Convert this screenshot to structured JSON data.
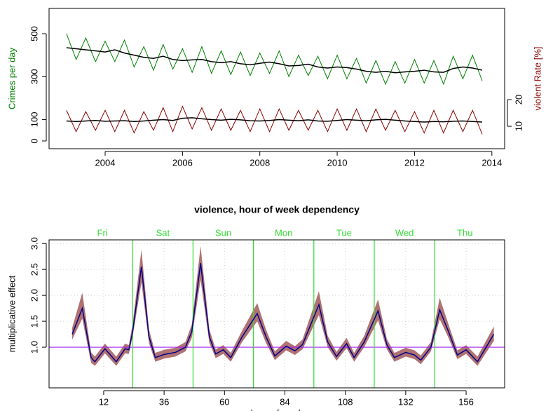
{
  "chart_data": [
    {
      "type": "line",
      "ylabel": "Crimes per day",
      "y2label": "violent Rate [%]",
      "xlim": [
        2002.55,
        2014.33
      ],
      "xticks": [
        2004,
        2006,
        2008,
        2010,
        2012,
        2014
      ],
      "ylim": [
        -36,
        618
      ],
      "yticks": [
        0,
        100,
        300,
        500
      ],
      "y2lim": [
        1.6,
        54.2
      ],
      "y2ticks": [
        10,
        20
      ],
      "ylabel_color": "#008000",
      "y2label_color": "#8b0000",
      "x": [
        2003,
        2003.25,
        2003.5,
        2003.75,
        2004,
        2004.25,
        2004.5,
        2004.75,
        2005,
        2005.25,
        2005.5,
        2005.75,
        2006,
        2006.25,
        2006.5,
        2006.75,
        2007,
        2007.25,
        2007.5,
        2007.75,
        2008,
        2008.25,
        2008.5,
        2008.75,
        2009,
        2009.25,
        2009.5,
        2009.75,
        2010,
        2010.25,
        2010.5,
        2010.75,
        2011,
        2011.25,
        2011.5,
        2011.75,
        2012,
        2012.25,
        2012.5,
        2012.75,
        2013,
        2013.25,
        2013.5,
        2013.75
      ],
      "series": [
        {
          "color": "#008000",
          "width": 1,
          "values": [
            500,
            380,
            480,
            370,
            465,
            370,
            470,
            345,
            440,
            330,
            450,
            335,
            430,
            320,
            440,
            315,
            420,
            310,
            415,
            305,
            410,
            315,
            420,
            300,
            400,
            305,
            395,
            290,
            400,
            290,
            385,
            270,
            375,
            265,
            370,
            270,
            380,
            270,
            375,
            265,
            395,
            290,
            400,
            280
          ]
        },
        {
          "color": "#000000",
          "width": 1.5,
          "values": [
            435,
            430,
            425,
            420,
            415,
            425,
            410,
            400,
            390,
            385,
            395,
            380,
            375,
            378,
            380,
            370,
            365,
            370,
            360,
            355,
            362,
            368,
            360,
            350,
            352,
            358,
            345,
            340,
            345,
            342,
            335,
            325,
            320,
            325,
            318,
            322,
            325,
            330,
            322,
            320,
            338,
            345,
            340,
            330
          ]
        },
        {
          "color": "#8b0000",
          "width": 1,
          "axis": "y2",
          "values": [
            16,
            8,
            15.5,
            8.5,
            16,
            8,
            16,
            7.5,
            15.5,
            8.5,
            17,
            8,
            17.5,
            9,
            17,
            8.5,
            16.5,
            8.5,
            16,
            8,
            16.5,
            8,
            16.5,
            8.5,
            16,
            8.5,
            16,
            8,
            16.5,
            8.5,
            16.5,
            8,
            16.5,
            8.5,
            16,
            8,
            15.5,
            7.5,
            16,
            7.5,
            16,
            8,
            16,
            7
          ]
        },
        {
          "color": "#000000",
          "width": 1.5,
          "axis": "y2",
          "values": [
            12,
            11.8,
            12,
            12.2,
            11.9,
            12,
            12.1,
            11.8,
            12,
            12.3,
            12.5,
            12.2,
            13,
            13.2,
            12.8,
            12.5,
            12.3,
            12.6,
            12.4,
            12.1,
            12,
            12.2,
            12.5,
            12.3,
            12.1,
            12.4,
            12,
            11.9,
            12.2,
            12.5,
            12.3,
            12.1,
            12.4,
            12.6,
            12.3,
            12,
            11.8,
            11.6,
            11.8,
            11.7,
            11.9,
            12,
            11.8,
            11.6
          ]
        }
      ]
    },
    {
      "type": "line",
      "title": "violence, hour of week dependency",
      "xlabel": "hour of week",
      "ylabel": "multiplicative effect",
      "xlim": [
        -9.7,
        171.3
      ],
      "xticks": [
        12,
        36,
        60,
        84,
        108,
        132,
        156
      ],
      "ylim": [
        0.216,
        3.07
      ],
      "yticks": [
        {
          "value": 1,
          "label": "1.0"
        },
        {
          "value": 1.5,
          "label": "1.5"
        },
        {
          "value": 2,
          "label": "2.0"
        },
        {
          "value": 2.5,
          "label": "2.5"
        },
        {
          "value": 3,
          "label": "3.0"
        }
      ],
      "grid": true,
      "hline": 1,
      "hline_color": "#a020f0",
      "days": [
        "Fri",
        "Sat",
        "Sun",
        "Mon",
        "Tue",
        "Wed",
        "Thu"
      ],
      "day_starts": [
        -0.5,
        23.5,
        47.5,
        71.5,
        95.5,
        119.5,
        143.5
      ],
      "day_color": "#33dd33",
      "x": [
        -0.5,
        3.5,
        7,
        8.5,
        12.5,
        17,
        20.5,
        22,
        23.5,
        27,
        30,
        32.5,
        36,
        40.5,
        44.5,
        47,
        50.5,
        54,
        56.5,
        59.5,
        62.5,
        67,
        73,
        76.5,
        80,
        84.5,
        88,
        91,
        97.5,
        101,
        104.5,
        108.5,
        111.5,
        115.5,
        121,
        124.5,
        127.5,
        132,
        135.5,
        138,
        142,
        145.5,
        149,
        152.5,
        156,
        160.5,
        167
      ],
      "band": {
        "color": "#b07272",
        "lower": [
          1.15,
          1.55,
          0.7,
          0.64,
          0.88,
          0.64,
          0.88,
          0.87,
          1.2,
          2.25,
          1.08,
          0.72,
          0.78,
          0.82,
          0.92,
          1.18,
          2.3,
          1.08,
          0.79,
          0.87,
          0.72,
          1.1,
          1.5,
          1.08,
          0.75,
          0.94,
          0.85,
          0.96,
          1.62,
          1.0,
          0.74,
          0.98,
          0.72,
          1.0,
          1.52,
          0.96,
          0.72,
          0.82,
          0.77,
          0.67,
          0.92,
          1.54,
          1.18,
          0.77,
          0.87,
          0.64,
          1.12
        ],
        "upper": [
          1.38,
          2.05,
          0.9,
          0.82,
          1.07,
          0.82,
          1.07,
          1.04,
          1.45,
          2.88,
          1.34,
          0.89,
          0.95,
          0.99,
          1.1,
          1.44,
          2.95,
          1.34,
          0.96,
          1.04,
          0.89,
          1.32,
          1.85,
          1.34,
          0.92,
          1.12,
          1.02,
          1.15,
          2.08,
          1.22,
          0.91,
          1.18,
          0.89,
          1.22,
          1.92,
          1.16,
          0.89,
          0.99,
          0.94,
          0.84,
          1.1,
          1.95,
          1.44,
          0.94,
          1.04,
          0.82,
          1.4
        ]
      },
      "series": [
        {
          "color": "#00008b",
          "width": 1.5,
          "values": [
            1.25,
            1.75,
            0.8,
            0.72,
            0.97,
            0.72,
            0.97,
            0.95,
            1.3,
            2.55,
            1.2,
            0.8,
            0.86,
            0.9,
            1.0,
            1.3,
            2.62,
            1.2,
            0.87,
            0.95,
            0.8,
            1.2,
            1.65,
            1.2,
            0.83,
            1.02,
            0.93,
            1.05,
            1.82,
            1.1,
            0.82,
            1.07,
            0.8,
            1.1,
            1.7,
            1.05,
            0.8,
            0.9,
            0.85,
            0.75,
            1.0,
            1.72,
            1.3,
            0.85,
            0.95,
            0.72,
            1.25
          ]
        }
      ]
    }
  ]
}
